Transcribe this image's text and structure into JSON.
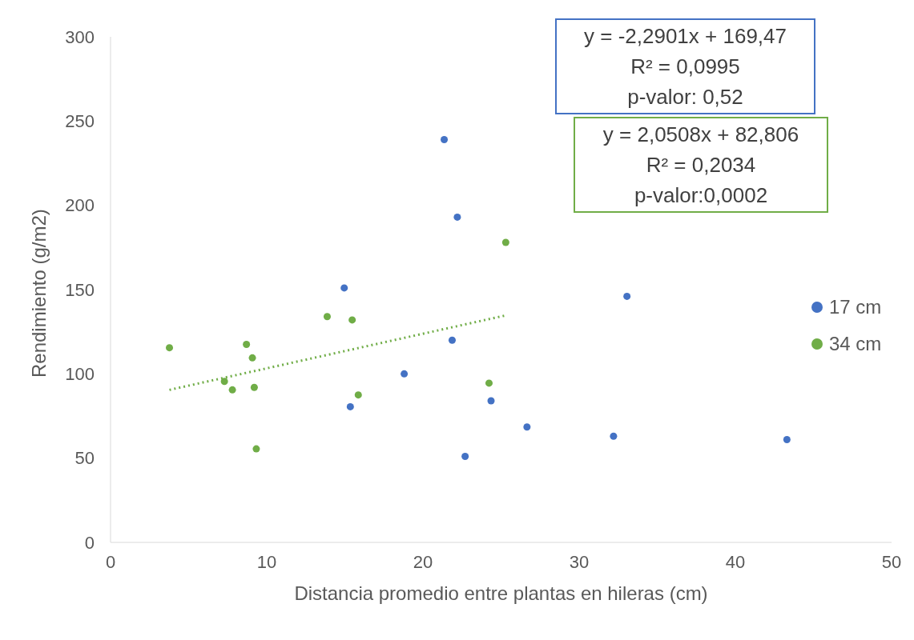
{
  "chart_data": {
    "type": "scatter",
    "xlabel": "Distancia promedio entre plantas en hileras (cm)",
    "ylabel": "Rendimiento (g/m2)",
    "xlim": [
      0,
      50
    ],
    "xticks": [
      0,
      10,
      20,
      30,
      40,
      50
    ],
    "ylim": [
      0,
      300
    ],
    "yticks": [
      0,
      50,
      100,
      150,
      200,
      250,
      300
    ],
    "grid": false,
    "legend": "right",
    "marker": "circle",
    "series": [
      {
        "name": "17 cm",
        "color": "#4472c4",
        "x": [
          21.36,
          22.2,
          14.96,
          33.06,
          21.87,
          18.8,
          15.35,
          24.36,
          26.66,
          32.2,
          43.3,
          22.7
        ],
        "values": [
          239,
          193,
          151,
          146,
          120,
          100,
          80.5,
          84,
          68.5,
          63,
          61,
          51
        ]
      },
      {
        "name": "34 cm",
        "color": "#70ad47",
        "x": [
          3.77,
          7.29,
          7.8,
          8.7,
          9.08,
          9.2,
          9.33,
          13.87,
          15.47,
          15.86,
          24.23,
          25.3
        ],
        "values": [
          115.5,
          95.5,
          90.5,
          117.5,
          109.5,
          92,
          55.5,
          134,
          132,
          87.5,
          94.5,
          178
        ]
      },
      {
        "type": "line",
        "color": "#70ad47",
        "line_style": "dotted",
        "marker": "none",
        "x": [
          3.77,
          25.3
        ],
        "values": [
          90.5,
          134.7
        ]
      }
    ],
    "annotations": [
      "y = -2,2901x + 169,47",
      "R² = 0,0995",
      "p-valor: 0,52",
      "y = 2,0508x + 82,806",
      "R² = 0,2034",
      "p-valor:0,0002"
    ]
  }
}
